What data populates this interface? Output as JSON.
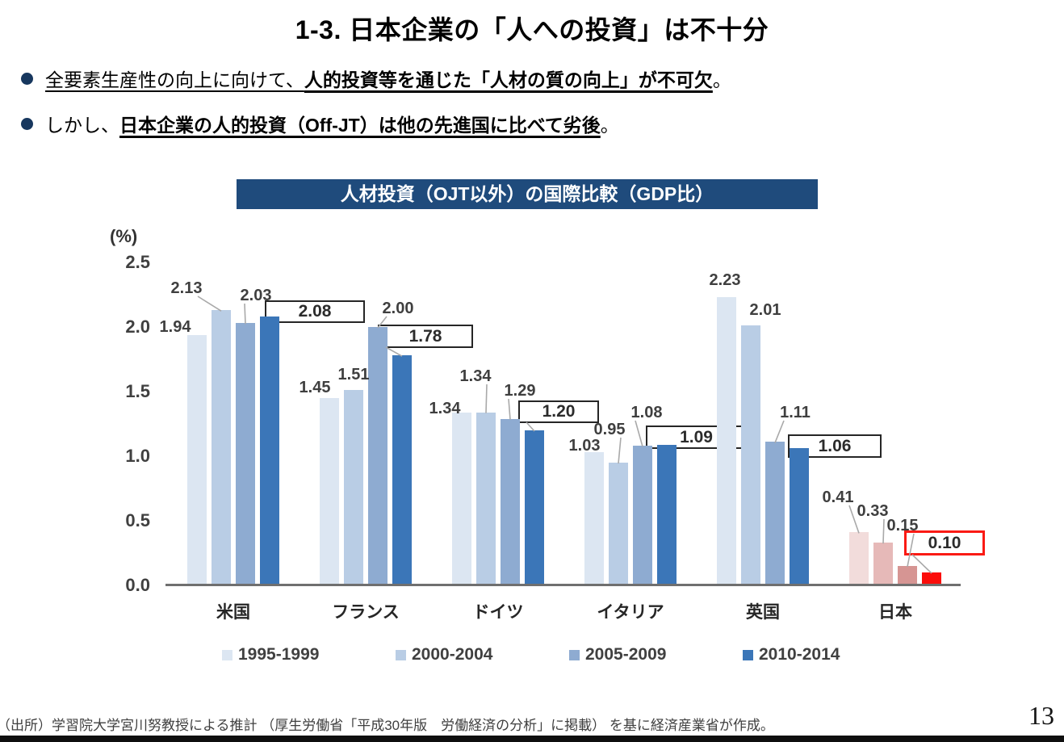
{
  "page": {
    "title": "1-3. 日本企業の「人への投資」は不十分",
    "bullets": [
      {
        "pre": "全要素生産性の向上に向けて、",
        "strong": "人的投資等を通じた「人材の質の向上」が不可欠",
        "post": "。"
      },
      {
        "pre": "しかし、",
        "strong": "日本企業の人的投資（Off-JT）は他の先進国に比べて劣後",
        "post": "。"
      }
    ],
    "source": "（出所）学習院大学宮川努教授による推計 （厚生労働省「平成30年版　労働経済の分析」に掲載） を基に経済産業省が作成。",
    "page_number": "13"
  },
  "chart_data": {
    "type": "bar",
    "title": "人材投資（OJT以外）の国際比較（GDP比）",
    "unit_label": "(%)",
    "categories": [
      "米国",
      "フランス",
      "ドイツ",
      "イタリア",
      "英国",
      "日本"
    ],
    "series": [
      {
        "name": "1995-1999",
        "values": [
          1.94,
          1.45,
          1.34,
          1.03,
          2.23,
          0.41
        ]
      },
      {
        "name": "2000-2004",
        "values": [
          2.13,
          1.51,
          1.34,
          0.95,
          2.01,
          0.33
        ]
      },
      {
        "name": "2005-2009",
        "values": [
          2.03,
          2.0,
          1.29,
          1.08,
          1.11,
          0.15
        ]
      },
      {
        "name": "2010-2014",
        "values": [
          2.08,
          1.78,
          1.2,
          1.09,
          1.06,
          0.1
        ]
      }
    ],
    "ylim": [
      0,
      2.5
    ],
    "yticks": [
      "2.5",
      "2.0",
      "1.5",
      "1.0",
      "0.5",
      "0.0"
    ],
    "grid": false,
    "legend_position": "bottom",
    "boxed_series": "2010-2014",
    "highlight_category": "日本",
    "value_label_decimals": 2,
    "colors": {
      "series_blue": [
        "#dce6f2",
        "#b9cde5",
        "#8eabd1",
        "#3b76b8"
      ],
      "japan_series": [
        "#f2dcdb",
        "#e6b9b8",
        "#d69593",
        "#fb0d0a"
      ],
      "box_border": "#262626",
      "box_border_highlight": "#fa1a14",
      "axis": "#6f6f6f",
      "label": "#3f3f3f",
      "leader": "#a9a9a9",
      "banner_bg": "#1f4b7c",
      "banner_text": "#ffffff",
      "bullet_dot": "#17375e"
    }
  }
}
